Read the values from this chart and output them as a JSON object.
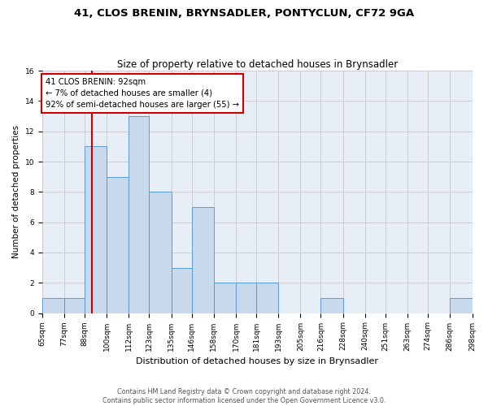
{
  "title1": "41, CLOS BRENIN, BRYNSADLER, PONTYCLUN, CF72 9GA",
  "title2": "Size of property relative to detached houses in Brynsadler",
  "xlabel": "Distribution of detached houses by size in Brynsadler",
  "ylabel": "Number of detached properties",
  "bin_edges": [
    65,
    77,
    88,
    100,
    112,
    123,
    135,
    146,
    158,
    170,
    181,
    193,
    205,
    216,
    228,
    240,
    251,
    263,
    274,
    286,
    298
  ],
  "bar_heights": [
    1,
    1,
    11,
    9,
    13,
    8,
    3,
    7,
    2,
    2,
    2,
    0,
    0,
    1,
    0,
    0,
    0,
    0,
    0,
    1
  ],
  "bar_color": "#c9d9ec",
  "bar_edge_color": "#5b9bd5",
  "property_value": 92,
  "vline_color": "#cc0000",
  "annotation_line1": "41 CLOS BRENIN: 92sqm",
  "annotation_line2": "← 7% of detached houses are smaller (4)",
  "annotation_line3": "92% of semi-detached houses are larger (55) →",
  "annotation_box_color": "#ffffff",
  "annotation_box_edge_color": "#cc0000",
  "ylim": [
    0,
    16
  ],
  "yticks": [
    0,
    2,
    4,
    6,
    8,
    10,
    12,
    14,
    16
  ],
  "grid_color": "#cccccc",
  "background_color": "#e8eef8",
  "footer_text": "Contains HM Land Registry data © Crown copyright and database right 2024.\nContains public sector information licensed under the Open Government Licence v3.0.",
  "tick_labels": [
    "65sqm",
    "77sqm",
    "88sqm",
    "100sqm",
    "112sqm",
    "123sqm",
    "135sqm",
    "146sqm",
    "158sqm",
    "170sqm",
    "181sqm",
    "193sqm",
    "205sqm",
    "216sqm",
    "228sqm",
    "240sqm",
    "251sqm",
    "263sqm",
    "274sqm",
    "286sqm",
    "298sqm"
  ],
  "title1_fontsize": 9.5,
  "title2_fontsize": 8.5,
  "xlabel_fontsize": 8,
  "ylabel_fontsize": 7.5,
  "tick_fontsize": 6.5,
  "annotation_fontsize": 7.2,
  "footer_fontsize": 5.8
}
